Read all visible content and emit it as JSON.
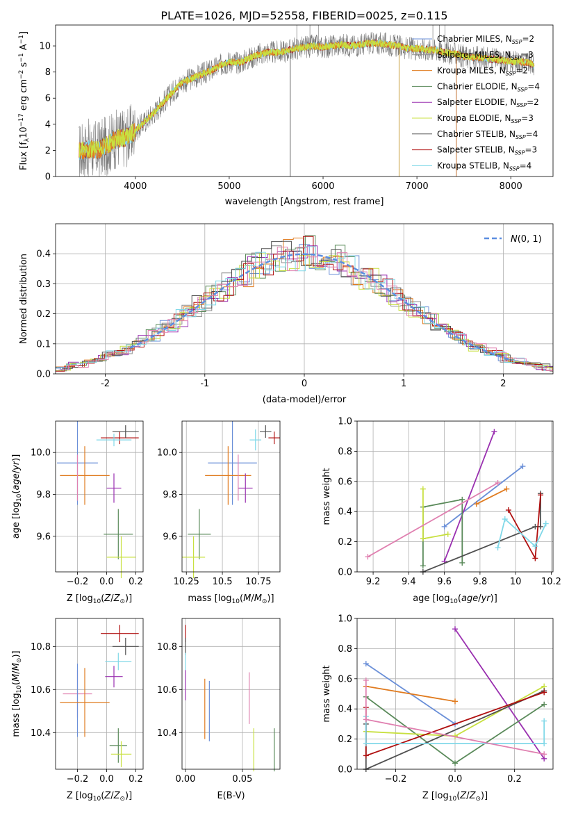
{
  "figure_title": "PLATE=1026, MJD=52558, FIBERID=0025, z=0.115",
  "colors": {
    "Chabrier MILES": "#6a8fd8",
    "Salpeter MILES": "#8c8c8c",
    "Kroupa MILES": "#e07b1f",
    "Chabrier ELODIE": "#5a8a5a",
    "Salpeter ELODIE": "#9a30b0",
    "Kroupa ELODIE": "#c8e040",
    "Chabrier STELIB": "#505050",
    "Salpeter STELIB": "#b01010",
    "Kroupa STELIB": "#80d8e8",
    "pink": "#e080b0",
    "gaussian": "#5b8ee0"
  },
  "chart_data": [
    {
      "id": "spectrum",
      "type": "line",
      "title": "PLATE=1026, MJD=52558, FIBERID=0025, z=0.115",
      "xlabel": "wavelength [Angstrom, rest frame]",
      "ylabel": "Flux [fλ10⁻¹⁷ erg cm⁻² s⁻¹ A⁻¹]",
      "xlim": [
        3150,
        8450
      ],
      "ylim": [
        0,
        11.6
      ],
      "xticks": [
        4000,
        5000,
        6000,
        7000,
        8000
      ],
      "yticks": [
        0,
        2,
        4,
        6,
        8,
        10
      ],
      "grid": false,
      "legend_position": "right",
      "legend": [
        {
          "label": "Chabrier MILES, N_SSP=2",
          "text": "Chabrier MILES, N",
          "sub": "SSP",
          "tail": "=2",
          "color_key": "Chabrier MILES"
        },
        {
          "label": "Salpeter MILES, N_SSP=3",
          "text": "Salpeter MILES, N",
          "sub": "SSP",
          "tail": "=3",
          "color_key": "Salpeter MILES"
        },
        {
          "label": "Kroupa MILES, N_SSP=2",
          "text": "Kroupa MILES, N",
          "sub": "SSP",
          "tail": "=2",
          "color_key": "Kroupa MILES"
        },
        {
          "label": "Chabrier ELODIE, N_SSP=4",
          "text": "Chabrier ELODIE, N",
          "sub": "SSP",
          "tail": "=4",
          "color_key": "Chabrier ELODIE"
        },
        {
          "label": "Salpeter ELODIE, N_SSP=2",
          "text": "Salpeter ELODIE, N",
          "sub": "SSP",
          "tail": "=2",
          "color_key": "Salpeter ELODIE"
        },
        {
          "label": "Kroupa ELODIE, N_SSP=3",
          "text": "Kroupa ELODIE, N",
          "sub": "SSP",
          "tail": "=3",
          "color_key": "Kroupa ELODIE"
        },
        {
          "label": "Chabrier STELIB, N_SSP=4",
          "text": "Chabrier STELIB, N",
          "sub": "SSP",
          "tail": "=4",
          "color_key": "Chabrier STELIB"
        },
        {
          "label": "Salpeter STELIB, N_SSP=3",
          "text": "Salpeter STELIB, N",
          "sub": "SSP",
          "tail": "=3",
          "color_key": "Salpeter STELIB"
        },
        {
          "label": "Kroupa STELIB, N_SSP=4",
          "text": "Kroupa STELIB, N",
          "sub": "SSP",
          "tail": "=4",
          "color_key": "Kroupa STELIB"
        }
      ],
      "continuum": {
        "x": [
          3400,
          3500,
          3600,
          3700,
          3800,
          3900,
          4000,
          4100,
          4200,
          4300,
          4400,
          4500,
          4600,
          4700,
          4800,
          4900,
          5000,
          5100,
          5200,
          5300,
          5400,
          5500,
          5600,
          5700,
          5800,
          5900,
          6000,
          6100,
          6200,
          6300,
          6400,
          6500,
          6600,
          6700,
          6800,
          6900,
          7000,
          7100,
          7200,
          7300,
          7400,
          7500,
          7600,
          7700,
          7800,
          7900,
          8000,
          8100,
          8200,
          8250
        ],
        "y": [
          1.9,
          2.1,
          2.0,
          2.4,
          2.9,
          3.0,
          3.5,
          4.2,
          4.9,
          5.7,
          6.5,
          7.2,
          7.5,
          7.8,
          8.1,
          8.5,
          8.8,
          8.7,
          9.0,
          9.3,
          9.5,
          9.5,
          9.6,
          9.8,
          9.9,
          10.0,
          9.9,
          10.0,
          10.1,
          10.0,
          10.1,
          10.2,
          10.2,
          10.1,
          10.0,
          9.8,
          9.8,
          9.7,
          9.7,
          9.5,
          9.4,
          9.2,
          9.1,
          9.1,
          9.0,
          8.9,
          8.8,
          8.8,
          8.7,
          8.5
        ]
      },
      "spikes_down": [
        5650,
        6810,
        7420
      ],
      "spikes_up": [
        5720,
        5860,
        5950,
        7170,
        7240,
        7300
      ]
    },
    {
      "id": "residuals",
      "type": "histogram",
      "xlabel": "(data-model)/error",
      "ylabel": "Normed distribution",
      "xlim": [
        -2.5,
        2.5
      ],
      "ylim": [
        0,
        0.5
      ],
      "xticks": [
        -2,
        -1,
        0,
        1,
        2
      ],
      "yticks": [
        0.0,
        0.1,
        0.2,
        0.3,
        0.4
      ],
      "grid": true,
      "bin_width": 0.1,
      "reference_curve": {
        "label": "N(0,1)",
        "x_range": [
          -1.75,
          2.1
        ]
      },
      "legend_position": "top-right"
    },
    {
      "id": "Z-age",
      "type": "errorbar",
      "xlabel": "Z [log10(Z/Z⊙)]",
      "ylabel": "age  [log10(age/yr)]",
      "xlim": [
        -0.35,
        0.25
      ],
      "ylim": [
        9.43,
        10.15
      ],
      "xticks": [
        -0.2,
        0.0,
        0.2
      ],
      "xticklabels": [
        "−0.2",
        "0.0",
        "0.2"
      ],
      "yticks": [
        9.6,
        9.8,
        10.0
      ],
      "grid": true,
      "points": [
        {
          "c": "Salpeter STELIB",
          "x": 0.09,
          "xe": 0.13,
          "y": 10.07,
          "ye": 0.03
        },
        {
          "c": "Chabrier STELIB",
          "x": 0.13,
          "xe": 0.09,
          "y": 10.1,
          "ye": 0.03
        },
        {
          "c": "Kroupa STELIB",
          "x": 0.05,
          "xe": 0.12,
          "y": 10.06,
          "ye": 0.03
        },
        {
          "c": "Chabrier MILES",
          "x": -0.2,
          "xe": 0.14,
          "y": 9.95,
          "ye": 0.2
        },
        {
          "c": "Kroupa MILES",
          "x": -0.15,
          "xe": 0.17,
          "y": 9.89,
          "ye": 0.14
        },
        {
          "c": "Salpeter ELODIE",
          "x": 0.05,
          "xe": 0.05,
          "y": 9.83,
          "ye": 0.07
        },
        {
          "c": "Chabrier ELODIE",
          "x": 0.08,
          "xe": 0.1,
          "y": 9.61,
          "ye": 0.12
        },
        {
          "c": "Kroupa ELODIE",
          "x": 0.1,
          "xe": 0.1,
          "y": 9.5,
          "ye": 0.1
        },
        {
          "c": "pink",
          "x": -0.2,
          "xe": 0.0,
          "y": 9.88,
          "ye": 0.11
        }
      ]
    },
    {
      "id": "mass-age",
      "type": "errorbar",
      "xlabel": "mass [log10(M/M⊙)]",
      "ylabel": "",
      "xlim": [
        10.22,
        10.9
      ],
      "ylim": [
        9.43,
        10.15
      ],
      "xticks": [
        10.25,
        10.5,
        10.75
      ],
      "yticks": [
        9.6,
        9.8,
        10.0
      ],
      "grid": true,
      "points": [
        {
          "c": "Salpeter STELIB",
          "x": 10.86,
          "xe": 0.04,
          "y": 10.07,
          "ye": 0.03
        },
        {
          "c": "Chabrier STELIB",
          "x": 10.8,
          "xe": 0.04,
          "y": 10.1,
          "ye": 0.03
        },
        {
          "c": "Kroupa STELIB",
          "x": 10.73,
          "xe": 0.04,
          "y": 10.06,
          "ye": 0.05
        },
        {
          "c": "Chabrier MILES",
          "x": 10.57,
          "xe": 0.17,
          "y": 9.95,
          "ye": 0.2
        },
        {
          "c": "Kroupa MILES",
          "x": 10.54,
          "xe": 0.16,
          "y": 9.89,
          "ye": 0.14
        },
        {
          "c": "Salpeter ELODIE",
          "x": 10.66,
          "xe": 0.05,
          "y": 9.83,
          "ye": 0.07
        },
        {
          "c": "Chabrier ELODIE",
          "x": 10.34,
          "xe": 0.08,
          "y": 9.61,
          "ye": 0.12
        },
        {
          "c": "Kroupa ELODIE",
          "x": 10.3,
          "xe": 0.08,
          "y": 9.5,
          "ye": 0.1
        },
        {
          "c": "pink",
          "x": 10.61,
          "xe": 0.0,
          "y": 9.88,
          "ye": 0.11
        }
      ]
    },
    {
      "id": "age-weight",
      "type": "line",
      "xlabel": "age  [log10(age/yr)]",
      "ylabel": "mass weight",
      "xlim": [
        9.11,
        10.21
      ],
      "ylim": [
        0,
        1
      ],
      "xticks": [
        9.2,
        9.4,
        9.6,
        9.8,
        10.0,
        10.2
      ],
      "yticks": [
        0.0,
        0.2,
        0.4,
        0.6,
        0.8,
        1.0
      ],
      "grid": true,
      "series": [
        {
          "c": "Chabrier MILES",
          "x": [
            9.6,
            10.04
          ],
          "y": [
            0.3,
            0.7
          ]
        },
        {
          "c": "Kroupa MILES",
          "x": [
            9.78,
            9.95
          ],
          "y": [
            0.45,
            0.55
          ]
        },
        {
          "c": "Salpeter ELODIE",
          "x": [
            9.6,
            9.88
          ],
          "y": [
            0.07,
            0.93
          ]
        },
        {
          "c": "Chabrier ELODIE",
          "x": [
            9.48,
            9.48,
            9.7,
            9.7
          ],
          "y": [
            0.04,
            0.43,
            0.48,
            0.06
          ]
        },
        {
          "c": "Kroupa ELODIE",
          "x": [
            9.48,
            9.48,
            9.62
          ],
          "y": [
            0.55,
            0.22,
            0.25
          ]
        },
        {
          "c": "Chabrier STELIB",
          "x": [
            9.48,
            10.11,
            10.14,
            10.14
          ],
          "y": [
            0.0,
            0.3,
            0.3,
            0.52
          ]
        },
        {
          "c": "Salpeter STELIB",
          "x": [
            9.96,
            10.11,
            10.14
          ],
          "y": [
            0.41,
            0.09,
            0.51
          ]
        },
        {
          "c": "Kroupa STELIB",
          "x": [
            9.9,
            9.94,
            10.11,
            10.17
          ],
          "y": [
            0.16,
            0.35,
            0.17,
            0.32
          ]
        },
        {
          "c": "pink",
          "x": [
            9.17,
            9.9
          ],
          "y": [
            0.1,
            0.59
          ]
        }
      ]
    },
    {
      "id": "Z-mass",
      "type": "errorbar",
      "xlabel": "Z [log10(Z/Z⊙)]",
      "ylabel": "mass [log10(M/M⊙)]",
      "xlim": [
        -0.35,
        0.25
      ],
      "ylim": [
        10.23,
        10.93
      ],
      "xticks": [
        -0.2,
        0.0,
        0.2
      ],
      "xticklabels": [
        "−0.2",
        "0.0",
        "0.2"
      ],
      "yticks": [
        10.4,
        10.6,
        10.8
      ],
      "grid": true,
      "points": [
        {
          "c": "Salpeter STELIB",
          "x": 0.09,
          "xe": 0.13,
          "y": 10.86,
          "ye": 0.04
        },
        {
          "c": "Chabrier STELIB",
          "x": 0.13,
          "xe": 0.09,
          "y": 10.8,
          "ye": 0.04
        },
        {
          "c": "Kroupa STELIB",
          "x": 0.08,
          "xe": 0.09,
          "y": 10.73,
          "ye": 0.04
        },
        {
          "c": "Salpeter ELODIE",
          "x": 0.05,
          "xe": 0.06,
          "y": 10.66,
          "ye": 0.05
        },
        {
          "c": "pink",
          "x": -0.2,
          "xe": 0.1,
          "y": 10.58,
          "ye": 0.11
        },
        {
          "c": "Chabrier MILES",
          "x": -0.2,
          "xe": 0.0,
          "y": 10.55,
          "ye": 0.17
        },
        {
          "c": "Kroupa MILES",
          "x": -0.15,
          "xe": 0.17,
          "y": 10.54,
          "ye": 0.16
        },
        {
          "c": "Chabrier ELODIE",
          "x": 0.08,
          "xe": 0.06,
          "y": 10.34,
          "ye": 0.08
        },
        {
          "c": "Kroupa ELODIE",
          "x": 0.1,
          "xe": 0.07,
          "y": 10.3,
          "ye": 0.06
        }
      ]
    },
    {
      "id": "ebv-mass",
      "type": "errorbar",
      "xlabel": "E(B-V)",
      "ylabel": "",
      "xlim": [
        -0.003,
        0.083
      ],
      "ylim": [
        10.23,
        10.93
      ],
      "xticks": [
        0.0,
        0.05
      ],
      "xticklabels": [
        "0.00",
        "0.05"
      ],
      "yticks": [
        10.4,
        10.6,
        10.8
      ],
      "grid": true,
      "points": [
        {
          "c": "Salpeter STELIB",
          "x": 0.0,
          "xe": 0,
          "y": 10.86,
          "ye": 0.04
        },
        {
          "c": "Chabrier STELIB",
          "x": 0.0,
          "xe": 0,
          "y": 10.8,
          "ye": 0.04
        },
        {
          "c": "Kroupa STELIB",
          "x": 0.0,
          "xe": 0,
          "y": 10.73,
          "ye": 0.04
        },
        {
          "c": "Salpeter ELODIE",
          "x": 0.0,
          "xe": 0,
          "y": 10.62,
          "ye": 0.07
        },
        {
          "c": "Kroupa MILES",
          "x": 0.017,
          "xe": 0,
          "y": 10.51,
          "ye": 0.14
        },
        {
          "c": "Chabrier MILES",
          "x": 0.021,
          "xe": 0,
          "y": 10.5,
          "ye": 0.14
        },
        {
          "c": "pink",
          "x": 0.056,
          "xe": 0,
          "y": 10.56,
          "ye": 0.12
        },
        {
          "c": "Kroupa ELODIE",
          "x": 0.06,
          "xe": 0,
          "y": 10.32,
          "ye": 0.1
        },
        {
          "c": "Chabrier ELODIE",
          "x": 0.078,
          "xe": 0,
          "y": 10.32,
          "ye": 0.1
        }
      ]
    },
    {
      "id": "Z-weight",
      "type": "line",
      "xlabel": "Z [log10(Z/Z⊙)]",
      "ylabel": "mass weight",
      "xlim": [
        -0.33,
        0.33
      ],
      "ylim": [
        0,
        1
      ],
      "xticks": [
        -0.2,
        0.0,
        0.2
      ],
      "xticklabels": [
        "−0.2",
        "0.0",
        "0.2"
      ],
      "yticks": [
        0.0,
        0.2,
        0.4,
        0.6,
        0.8,
        1.0
      ],
      "grid": true,
      "series": [
        {
          "c": "Chabrier MILES",
          "x": [
            -0.3,
            0.0
          ],
          "y": [
            0.7,
            0.3
          ]
        },
        {
          "c": "Kroupa MILES",
          "x": [
            -0.3,
            0.0
          ],
          "y": [
            0.55,
            0.45
          ]
        },
        {
          "c": "Salpeter ELODIE",
          "x": [
            0.0,
            0.3
          ],
          "y": [
            0.93,
            0.07
          ]
        },
        {
          "c": "Chabrier ELODIE",
          "x": [
            -0.3,
            0.0,
            0.3
          ],
          "y": [
            0.48,
            0.04,
            0.43
          ]
        },
        {
          "c": "Kroupa ELODIE",
          "x": [
            -0.3,
            0.0,
            0.3
          ],
          "y": [
            0.25,
            0.22,
            0.55
          ]
        },
        {
          "c": "Chabrier STELIB",
          "x": [
            -0.3,
            -0.3,
            0.3
          ],
          "y": [
            0.3,
            0.0,
            0.52
          ]
        },
        {
          "c": "Salpeter STELIB",
          "x": [
            -0.3,
            -0.3,
            0.3
          ],
          "y": [
            0.41,
            0.09,
            0.51
          ]
        },
        {
          "c": "Kroupa STELIB",
          "x": [
            -0.3,
            -0.3,
            0.3,
            0.3
          ],
          "y": [
            0.35,
            0.17,
            0.17,
            0.32
          ]
        },
        {
          "c": "pink",
          "x": [
            -0.3,
            -0.3,
            0.3
          ],
          "y": [
            0.59,
            0.33,
            0.1
          ]
        }
      ]
    }
  ]
}
